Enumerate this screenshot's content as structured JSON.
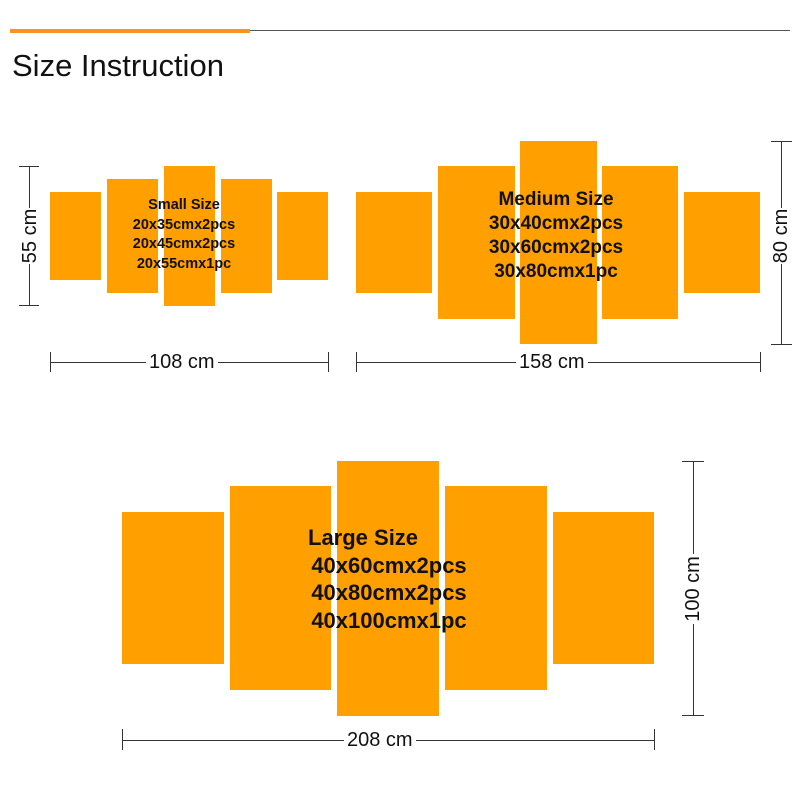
{
  "header": {
    "title": "Size Instruction",
    "accent_color": "#F7941D",
    "rule_color": "#555555"
  },
  "panel_color": "#FF9F00",
  "small": {
    "label_lines": [
      "Small Size",
      "20x35cmx2pcs",
      "20x45cmx2pcs",
      "20x55cmx1pc"
    ],
    "width_label": "108 cm",
    "height_label": "55 cm"
  },
  "medium": {
    "label_lines": [
      "Medium Size",
      "30x40cmx2pcs",
      "30x60cmx2pcs",
      "30x80cmx1pc"
    ],
    "width_label": "158 cm",
    "height_label": "80 cm"
  },
  "large": {
    "label_lines": [
      "Large Size",
      "40x60cmx2pcs",
      "40x80cmx2pcs",
      "40x100cmx1pc"
    ],
    "width_label": "208 cm",
    "height_label": "100 cm"
  }
}
